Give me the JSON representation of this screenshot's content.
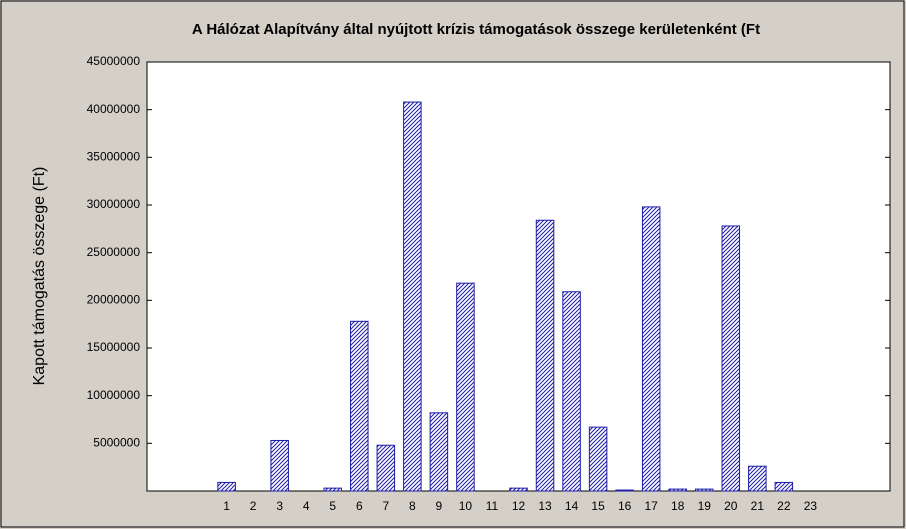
{
  "chart_data": {
    "type": "bar",
    "title": "A Hálózat Alapítvány által nyújtott krízis támogatások összege kerületenként (Ft",
    "y_label": "Kapott támogatás összege (Ft)",
    "categories": [
      "1",
      "2",
      "3",
      "4",
      "5",
      "6",
      "7",
      "8",
      "9",
      "10",
      "11",
      "12",
      "13",
      "14",
      "15",
      "16",
      "17",
      "18",
      "19",
      "20",
      "21",
      "22",
      "23"
    ],
    "values": [
      900000,
      0,
      5300000,
      0,
      300000,
      17800000,
      4800000,
      40800000,
      8200000,
      21800000,
      0,
      300000,
      28400000,
      20900000,
      6700000,
      100000,
      29800000,
      200000,
      200000,
      27800000,
      2600000,
      900000,
      0
    ],
    "color": "#1c1ca8",
    "ylim": [
      0,
      45000000
    ],
    "yticks": [
      5000000,
      10000000,
      15000000,
      20000000,
      25000000,
      30000000,
      35000000,
      40000000,
      45000000
    ],
    "grid": false
  }
}
